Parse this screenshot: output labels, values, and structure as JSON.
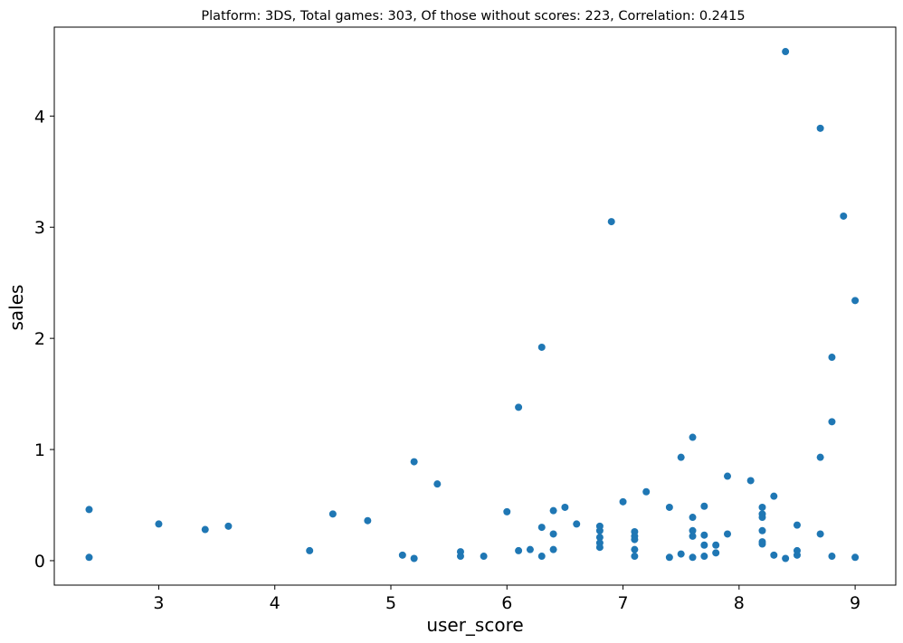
{
  "chart_data": {
    "type": "scatter",
    "title": "Platform: 3DS, Total games: 303, Of those without scores: 223, Correlation: 0.2415",
    "xlabel": "user_score",
    "ylabel": "sales",
    "xlim": [
      2.1,
      9.35
    ],
    "ylim": [
      -0.22,
      4.8
    ],
    "xticks": [
      "3",
      "4",
      "5",
      "6",
      "7",
      "8",
      "9"
    ],
    "yticks": [
      "0",
      "1",
      "2",
      "3",
      "4"
    ],
    "grid": false,
    "legend": "none",
    "marker_color": "#1f77b4",
    "points": [
      {
        "x": 2.4,
        "y": 0.46
      },
      {
        "x": 2.4,
        "y": 0.03
      },
      {
        "x": 3.0,
        "y": 0.33
      },
      {
        "x": 3.4,
        "y": 0.28
      },
      {
        "x": 3.6,
        "y": 0.31
      },
      {
        "x": 4.3,
        "y": 0.09
      },
      {
        "x": 4.5,
        "y": 0.42
      },
      {
        "x": 4.8,
        "y": 0.36
      },
      {
        "x": 5.1,
        "y": 0.05
      },
      {
        "x": 5.2,
        "y": 0.89
      },
      {
        "x": 5.2,
        "y": 0.02
      },
      {
        "x": 5.4,
        "y": 0.69
      },
      {
        "x": 5.6,
        "y": 0.08
      },
      {
        "x": 5.6,
        "y": 0.04
      },
      {
        "x": 5.8,
        "y": 0.04
      },
      {
        "x": 6.0,
        "y": 0.44
      },
      {
        "x": 6.1,
        "y": 1.38
      },
      {
        "x": 6.1,
        "y": 0.09
      },
      {
        "x": 6.2,
        "y": 0.1
      },
      {
        "x": 6.3,
        "y": 1.92
      },
      {
        "x": 6.3,
        "y": 0.3
      },
      {
        "x": 6.3,
        "y": 0.04
      },
      {
        "x": 6.4,
        "y": 0.45
      },
      {
        "x": 6.4,
        "y": 0.24
      },
      {
        "x": 6.4,
        "y": 0.1
      },
      {
        "x": 6.5,
        "y": 0.48
      },
      {
        "x": 6.6,
        "y": 0.33
      },
      {
        "x": 6.8,
        "y": 0.31
      },
      {
        "x": 6.8,
        "y": 0.27
      },
      {
        "x": 6.8,
        "y": 0.21
      },
      {
        "x": 6.8,
        "y": 0.16
      },
      {
        "x": 6.8,
        "y": 0.12
      },
      {
        "x": 6.9,
        "y": 3.05
      },
      {
        "x": 7.0,
        "y": 0.53
      },
      {
        "x": 7.1,
        "y": 0.26
      },
      {
        "x": 7.1,
        "y": 0.22
      },
      {
        "x": 7.1,
        "y": 0.19
      },
      {
        "x": 7.1,
        "y": 0.1
      },
      {
        "x": 7.1,
        "y": 0.04
      },
      {
        "x": 7.2,
        "y": 0.62
      },
      {
        "x": 7.4,
        "y": 0.48
      },
      {
        "x": 7.4,
        "y": 0.03
      },
      {
        "x": 7.5,
        "y": 0.93
      },
      {
        "x": 7.5,
        "y": 0.06
      },
      {
        "x": 7.6,
        "y": 1.11
      },
      {
        "x": 7.6,
        "y": 0.39
      },
      {
        "x": 7.6,
        "y": 0.27
      },
      {
        "x": 7.6,
        "y": 0.22
      },
      {
        "x": 7.6,
        "y": 0.03
      },
      {
        "x": 7.7,
        "y": 0.49
      },
      {
        "x": 7.7,
        "y": 0.23
      },
      {
        "x": 7.7,
        "y": 0.14
      },
      {
        "x": 7.7,
        "y": 0.04
      },
      {
        "x": 7.8,
        "y": 0.14
      },
      {
        "x": 7.8,
        "y": 0.07
      },
      {
        "x": 7.9,
        "y": 0.76
      },
      {
        "x": 7.9,
        "y": 0.24
      },
      {
        "x": 8.1,
        "y": 0.72
      },
      {
        "x": 8.2,
        "y": 0.48
      },
      {
        "x": 8.2,
        "y": 0.42
      },
      {
        "x": 8.2,
        "y": 0.39
      },
      {
        "x": 8.2,
        "y": 0.27
      },
      {
        "x": 8.2,
        "y": 0.17
      },
      {
        "x": 8.2,
        "y": 0.15
      },
      {
        "x": 8.3,
        "y": 0.58
      },
      {
        "x": 8.3,
        "y": 0.05
      },
      {
        "x": 8.4,
        "y": 4.58
      },
      {
        "x": 8.4,
        "y": 0.02
      },
      {
        "x": 8.5,
        "y": 0.32
      },
      {
        "x": 8.5,
        "y": 0.09
      },
      {
        "x": 8.5,
        "y": 0.05
      },
      {
        "x": 8.7,
        "y": 3.89
      },
      {
        "x": 8.7,
        "y": 0.93
      },
      {
        "x": 8.7,
        "y": 0.24
      },
      {
        "x": 8.8,
        "y": 1.83
      },
      {
        "x": 8.8,
        "y": 1.25
      },
      {
        "x": 8.8,
        "y": 0.04
      },
      {
        "x": 8.9,
        "y": 3.1
      },
      {
        "x": 9.0,
        "y": 2.34
      },
      {
        "x": 9.0,
        "y": 0.03
      }
    ]
  }
}
